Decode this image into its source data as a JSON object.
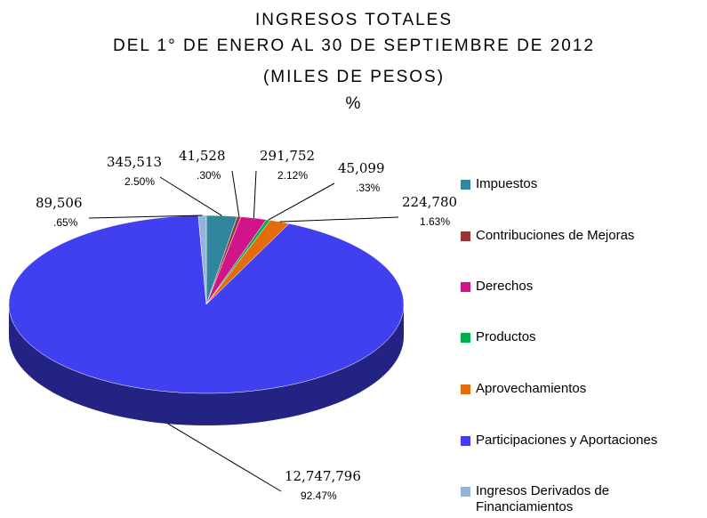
{
  "chart_data": {
    "type": "pie",
    "title": "INGRESOS TOTALES",
    "subtitle": [
      "DEL 1° DE ENERO AL 30 DE SEPTIEMBRE DE 2012",
      "(MILES DE PESOS)",
      "%"
    ],
    "categories": [
      "Impuestos",
      "Contribuciones de Mejoras",
      "Derechos",
      "Productos",
      "Aprovechamientos",
      "Participaciones y Aportaciones",
      "Ingresos Derivados de Financiamientos"
    ],
    "values": [
      345513,
      41528,
      291752,
      45099,
      224780,
      12747796,
      89506
    ],
    "value_labels": [
      "345,513",
      "41,528",
      "291,752",
      "45,099",
      "224,780",
      "12,747,796",
      "89,506"
    ],
    "percents": [
      2.5,
      0.3,
      2.12,
      0.33,
      1.63,
      92.47,
      0.65
    ],
    "percent_labels": [
      "2.50%",
      ".30%",
      "2.12%",
      ".33%",
      "1.63%",
      "92.47%",
      ".65%"
    ],
    "colors": [
      "#31859c",
      "#953735",
      "#d0158a",
      "#00b050",
      "#e46c0a",
      "#4040f0",
      "#95b3d7"
    ],
    "legend": "right"
  }
}
